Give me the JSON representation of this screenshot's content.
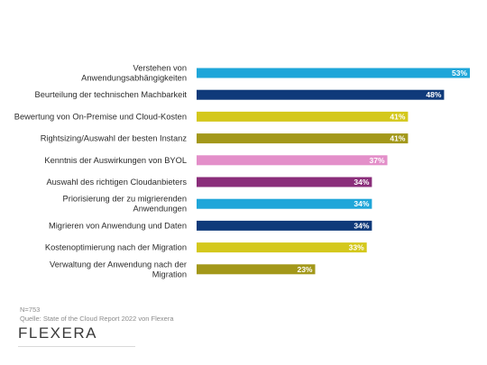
{
  "chart_data": {
    "type": "bar",
    "orientation": "horizontal",
    "categories": [
      [
        "Verstehen von",
        "Anwendungsabhängigkeiten"
      ],
      [
        "Beurteilung der technischen Machbarkeit"
      ],
      [
        "Bewertung von On-Premise und Cloud-Kosten"
      ],
      [
        "Rightsizing/Auswahl der besten Instanz"
      ],
      [
        "Kenntnis der Auswirkungen von BYOL"
      ],
      [
        "Auswahl des richtigen Cloudanbieters"
      ],
      [
        "Priorisierung der zu migrierenden",
        "Anwendungen"
      ],
      [
        "Migrieren von Anwendung und Daten"
      ],
      [
        "Kostenoptimierung nach der Migration"
      ],
      [
        "Verwaltung der Anwendung nach der",
        "Migration"
      ]
    ],
    "values": [
      53,
      48,
      41,
      41,
      37,
      34,
      34,
      34,
      33,
      23
    ],
    "value_labels": [
      "53%",
      "48%",
      "41%",
      "41%",
      "37%",
      "34%",
      "34%",
      "34%",
      "33%",
      "23%"
    ],
    "bar_colors": [
      "#1fa6d9",
      "#0f3a7a",
      "#d4c81c",
      "#a3981a",
      "#e38fc9",
      "#8a2d7a",
      "#1fa6d9",
      "#0f3a7a",
      "#d4c81c",
      "#a3981a"
    ],
    "xlim": [
      0,
      53
    ],
    "grid": false,
    "legend": "none"
  },
  "footer": {
    "sample_size": "N=753",
    "source": "Quelle: State of the Cloud Report 2022 von Flexera",
    "logo_text": "flexera"
  }
}
